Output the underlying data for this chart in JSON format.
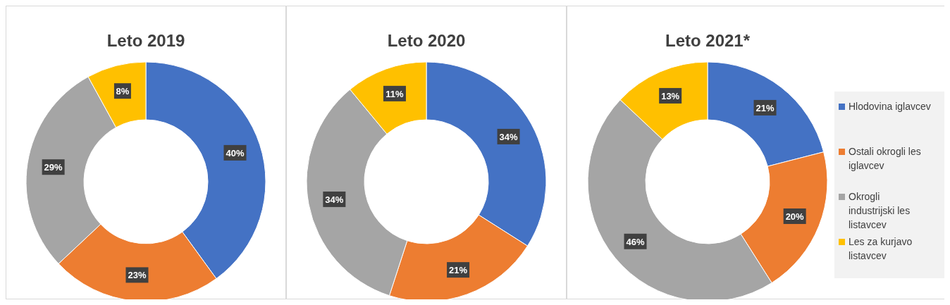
{
  "chart_data": [
    {
      "type": "donut",
      "title": "Leto 2019",
      "categories": [
        null,
        null,
        null,
        null
      ],
      "values": [
        40,
        23,
        29,
        8
      ],
      "value_labels": [
        "40%",
        "23%",
        "29%",
        "8%"
      ],
      "colors": [
        "#4472c4",
        "#ed7d31",
        "#a5a5a5",
        "#ffc000"
      ],
      "legend": false
    },
    {
      "type": "donut",
      "title": "Leto 2020",
      "categories": [
        null,
        null,
        null,
        null
      ],
      "values": [
        34,
        21,
        34,
        11
      ],
      "value_labels": [
        "34%",
        "21%",
        "34%",
        "11%"
      ],
      "colors": [
        "#4472c4",
        "#ed7d31",
        "#a5a5a5",
        "#ffc000"
      ],
      "legend": false
    },
    {
      "type": "donut",
      "title": "Leto 2021*",
      "categories": [
        "Hlodovina iglavcev",
        "Ostali okrogli les iglavcev",
        "Okrogli industrijski les listavcev",
        "Les za kurjavo listavcev"
      ],
      "values": [
        21,
        20,
        46,
        13
      ],
      "value_labels": [
        "21%",
        "20%",
        "46%",
        "13%"
      ],
      "colors": [
        "#4472c4",
        "#ed7d31",
        "#a5a5a5",
        "#ffc000"
      ],
      "legend": "right"
    }
  ]
}
